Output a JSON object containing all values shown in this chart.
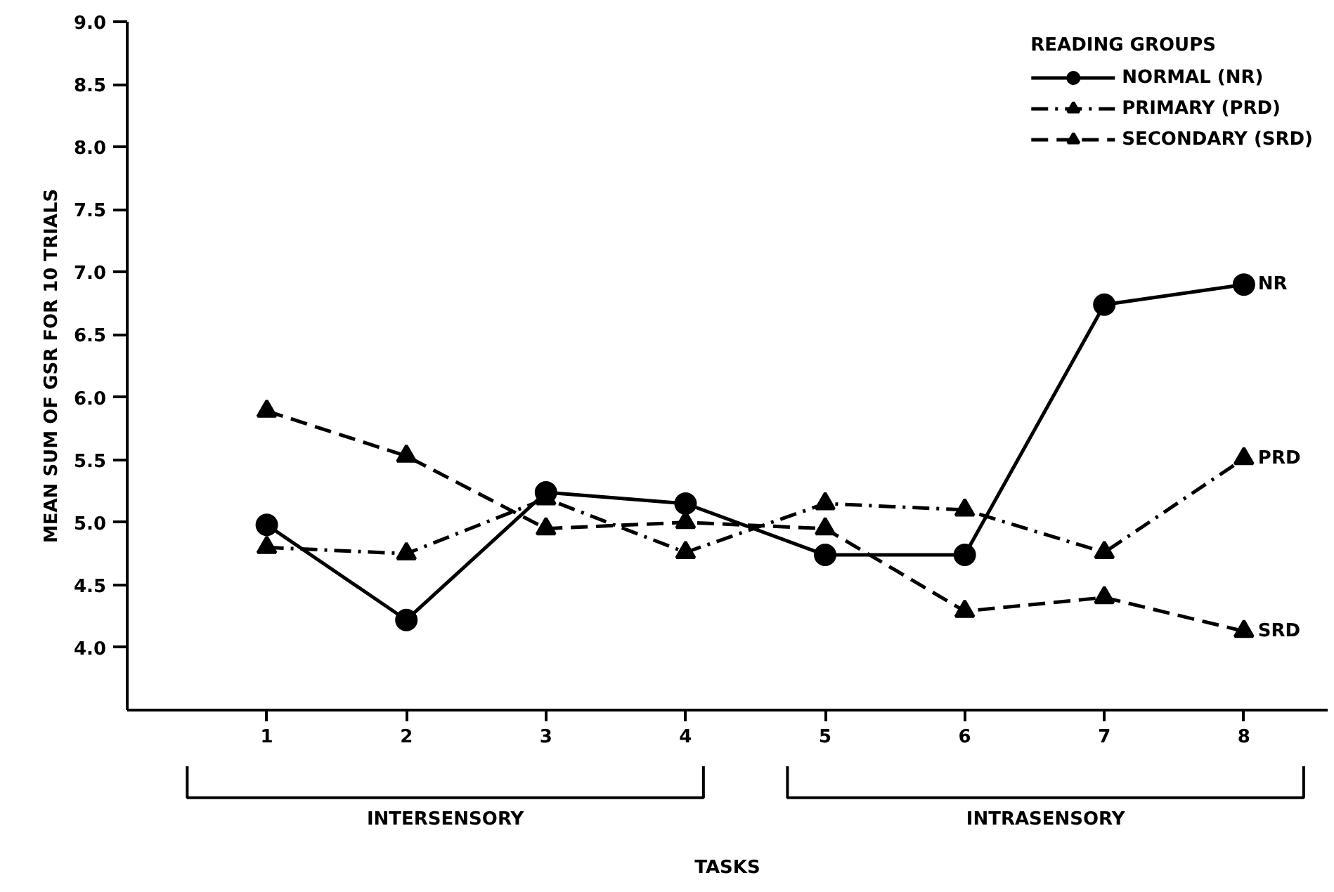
{
  "chart_data": {
    "type": "line",
    "ylabel": "MEAN SUM OF GSR FOR 10 TRIALS",
    "legend_title": "READING GROUPS",
    "x": [
      1,
      2,
      3,
      4,
      5,
      6,
      7,
      8
    ],
    "xlim": [
      0,
      8.6
    ],
    "xticks": [
      1,
      2,
      3,
      4,
      5,
      6,
      7,
      8
    ],
    "ylim": [
      3.5,
      9.0
    ],
    "yticks": [
      {
        "value": 4,
        "label": "4.0"
      },
      4.5,
      {
        "value": 5,
        "label": "5.0"
      },
      5.5,
      {
        "value": 6,
        "label": "6.0"
      },
      6.5,
      {
        "value": 7,
        "label": "7.0"
      },
      7.5,
      {
        "value": 8,
        "label": "8.0"
      },
      8.5,
      {
        "value": 9,
        "label": "9.0"
      }
    ],
    "series": [
      {
        "name": "NORMAL (NR)",
        "color": "#000000",
        "marker": "circle",
        "line_style": "solid",
        "values": [
          4.98,
          4.22,
          5.24,
          5.15,
          4.74,
          4.74,
          6.74,
          6.9
        ]
      },
      {
        "name": "PRIMARY (PRD)",
        "color": "#000000",
        "marker": "triangle",
        "line_style": "dashdot",
        "values": [
          4.8,
          4.75,
          5.19,
          4.76,
          5.15,
          5.1,
          4.76,
          5.51
        ]
      },
      {
        "name": "SECONDARY (SRD)",
        "color": "#000000",
        "marker": "triangle",
        "line_style": "dashed",
        "values": [
          5.89,
          5.53,
          4.95,
          5.0,
          4.95,
          4.29,
          4.4,
          4.13
        ]
      }
    ],
    "annotations": [
      "NR",
      "PRD",
      "SRD",
      "INTERSENSORY",
      "INTRASENSORY",
      "TASKS"
    ],
    "grid": false,
    "legend": "top right"
  }
}
